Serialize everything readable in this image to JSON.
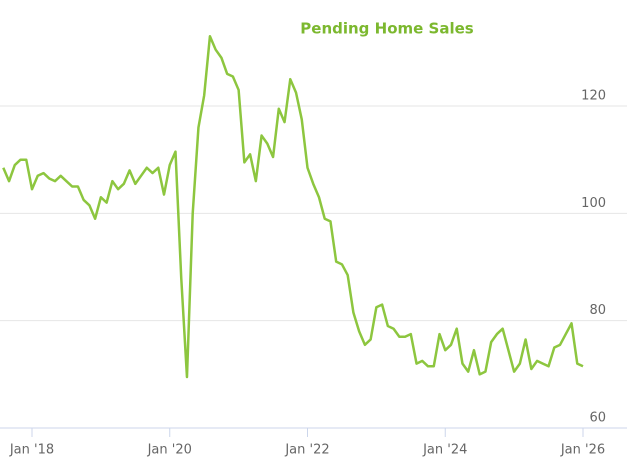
{
  "chart_data": {
    "type": "line",
    "title": "Pending Home Sales",
    "x": [
      "2017-08",
      "2017-09",
      "2017-10",
      "2017-11",
      "2017-12",
      "2018-01",
      "2018-02",
      "2018-03",
      "2018-04",
      "2018-05",
      "2018-06",
      "2018-07",
      "2018-08",
      "2018-09",
      "2018-10",
      "2018-11",
      "2018-12",
      "2019-01",
      "2019-02",
      "2019-03",
      "2019-04",
      "2019-05",
      "2019-06",
      "2019-07",
      "2019-08",
      "2019-09",
      "2019-10",
      "2019-11",
      "2019-12",
      "2020-01",
      "2020-02",
      "2020-03",
      "2020-04",
      "2020-05",
      "2020-06",
      "2020-07",
      "2020-08",
      "2020-09",
      "2020-10",
      "2020-11",
      "2020-12",
      "2021-01",
      "2021-02",
      "2021-03",
      "2021-04",
      "2021-05",
      "2021-06",
      "2021-07",
      "2021-08",
      "2021-09",
      "2021-10",
      "2021-11",
      "2021-12",
      "2022-01",
      "2022-02",
      "2022-03",
      "2022-04",
      "2022-05",
      "2022-06",
      "2022-07",
      "2022-08",
      "2022-09",
      "2022-10",
      "2022-11",
      "2022-12",
      "2023-01",
      "2023-02",
      "2023-03",
      "2023-04",
      "2023-05",
      "2023-06",
      "2023-07",
      "2023-08",
      "2023-09",
      "2023-10",
      "2023-11",
      "2023-12",
      "2024-01",
      "2024-02",
      "2024-03",
      "2024-04",
      "2024-05",
      "2024-06",
      "2024-07",
      "2024-08",
      "2024-09",
      "2024-10",
      "2024-11",
      "2024-12",
      "2025-01",
      "2025-02",
      "2025-03",
      "2025-04",
      "2025-05",
      "2025-06",
      "2025-07",
      "2025-08",
      "2025-09",
      "2025-10",
      "2025-11",
      "2025-12",
      "2026-01"
    ],
    "series": [
      {
        "name": "Pending Home Sales",
        "color": "#8dc63f",
        "values": [
          108.5,
          106,
          109,
          110,
          110,
          104.5,
          107,
          107.5,
          106.5,
          106,
          107,
          106,
          105,
          105,
          102.5,
          101.5,
          99,
          103,
          102,
          106,
          104.5,
          105.5,
          108,
          105.5,
          107,
          108.5,
          107.5,
          108.5,
          103.5,
          109,
          111.5,
          88,
          69.5,
          100,
          116,
          122,
          133,
          130.5,
          129,
          126,
          125.5,
          123,
          109.5,
          111,
          106,
          114.5,
          113,
          110.5,
          119.5,
          117,
          125,
          122.5,
          117.5,
          108.5,
          105.5,
          103,
          99,
          98.5,
          91,
          90.5,
          88.5,
          81.5,
          78,
          75.5,
          76.5,
          82.5,
          83,
          79,
          78.5,
          77,
          77,
          77.5,
          72,
          72.5,
          71.5,
          71.5,
          77.5,
          74.5,
          75.5,
          78.5,
          72,
          70.5,
          74.5,
          70,
          70.5,
          76,
          77.5,
          78.5,
          74.5,
          70.5,
          72,
          76.5,
          71,
          72.5,
          72,
          71.5,
          75,
          75.5,
          77.5,
          79.5,
          72,
          71.5
        ]
      }
    ],
    "xlim": [
      "2017-07",
      "2026-01"
    ],
    "xticks": [
      {
        "value": "2018-01",
        "label": "Jan '18"
      },
      {
        "value": "2020-01",
        "label": "Jan '20"
      },
      {
        "value": "2022-01",
        "label": "Jan '22"
      },
      {
        "value": "2024-01",
        "label": "Jan '24"
      },
      {
        "value": "2026-01",
        "label": "Jan '26"
      }
    ],
    "ylim": [
      60,
      140
    ],
    "yticks": [
      60,
      80,
      100,
      120
    ],
    "grid": true
  }
}
